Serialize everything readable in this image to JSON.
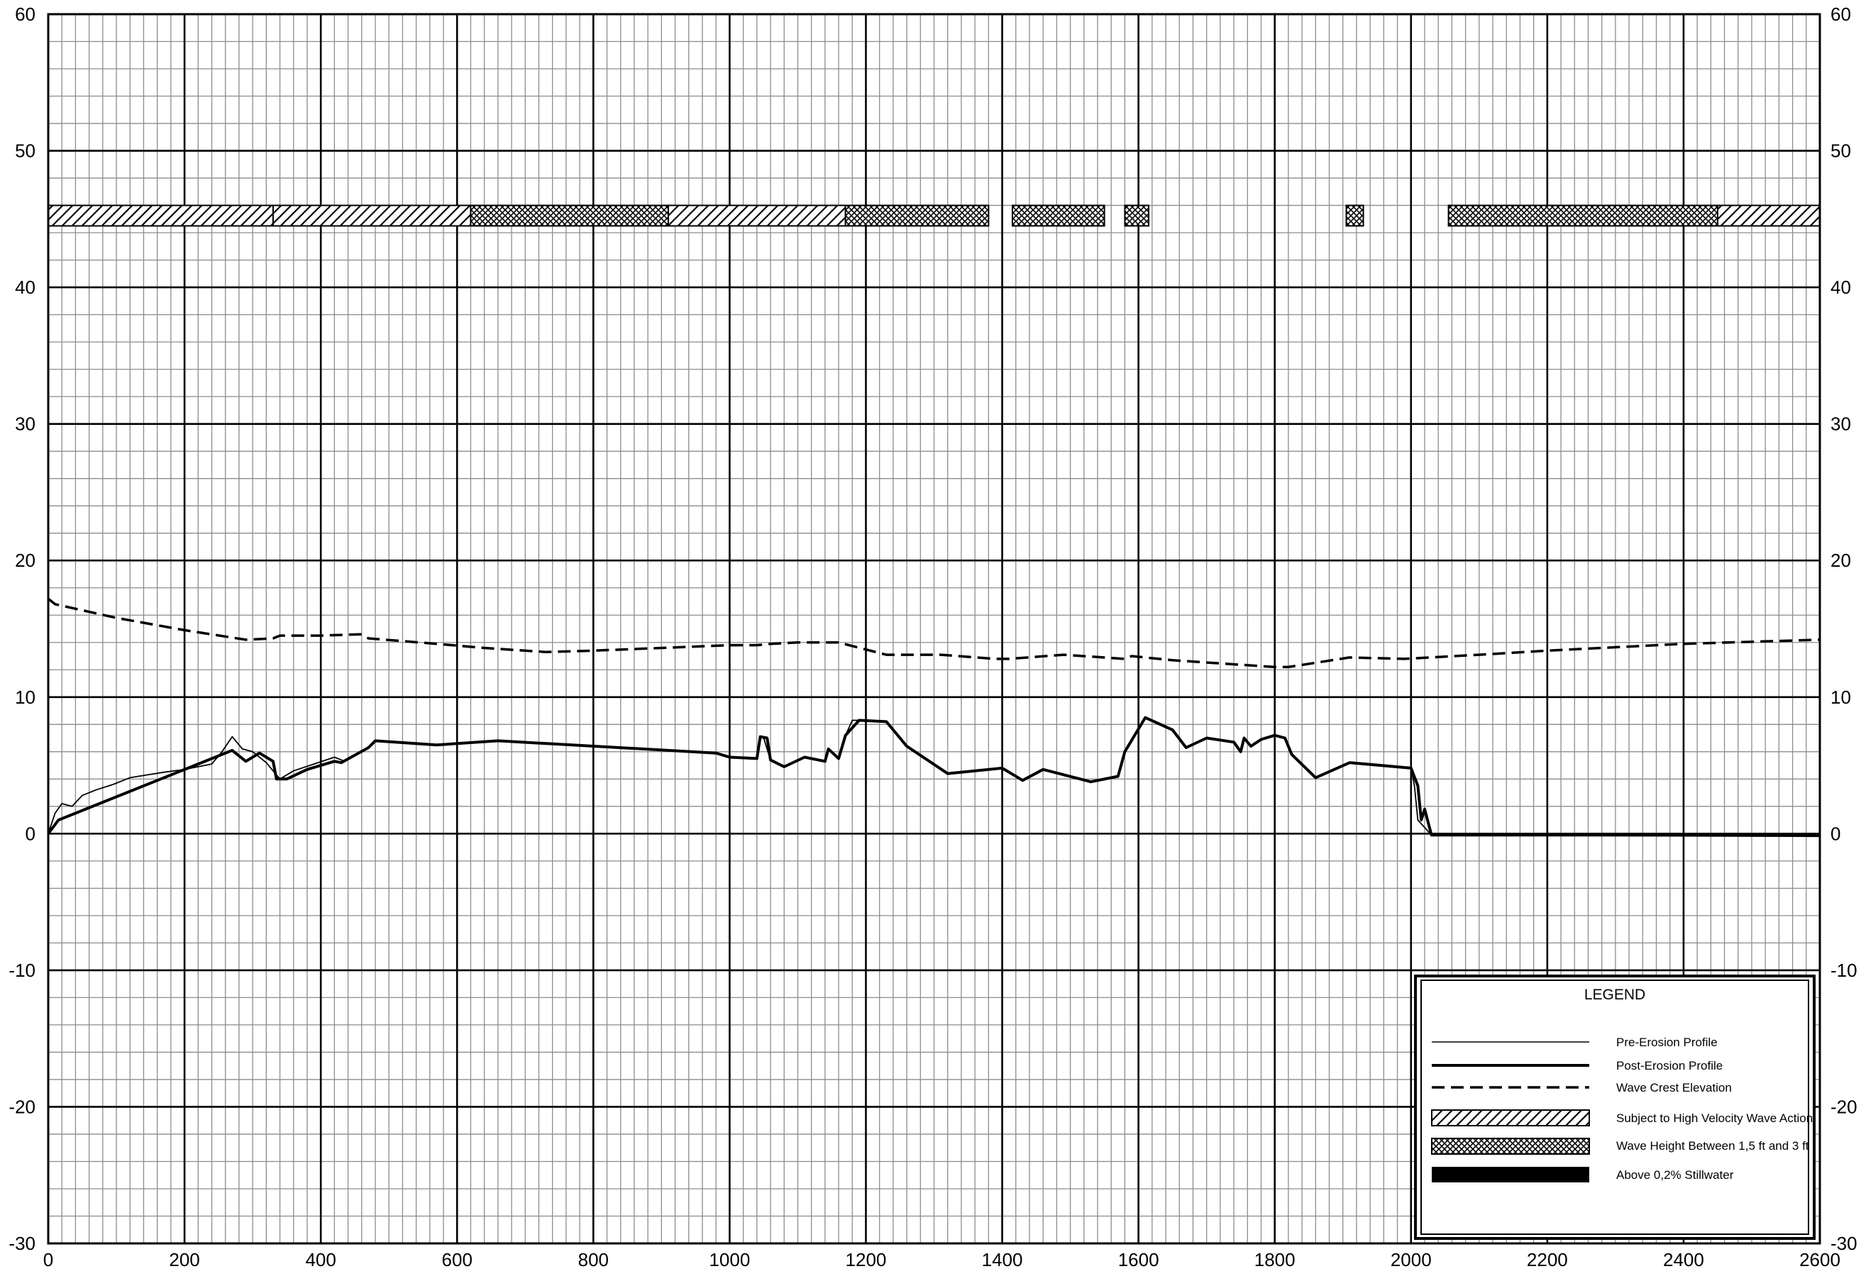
{
  "chart_data": {
    "type": "line",
    "title": "",
    "xlabel": "",
    "ylabel": "",
    "xlim": [
      0,
      2600
    ],
    "ylim": [
      -30,
      60
    ],
    "grid": true,
    "x_ticks": [
      "0",
      "200",
      "400",
      "600",
      "800",
      "1000",
      "1200",
      "1400",
      "1600",
      "1800",
      "2000",
      "2200",
      "2400",
      "2600"
    ],
    "y_ticks": [
      "60",
      "50",
      "40",
      "30",
      "20",
      "10",
      "0",
      "-10",
      "-20",
      "-30"
    ],
    "series": [
      {
        "name": "Pre-Erosion Profile",
        "style": "thin",
        "x": [
          0,
          10,
          20,
          35,
          50,
          70,
          95,
          120,
          145,
          170,
          200,
          240,
          255,
          270,
          285,
          300,
          320,
          340,
          360,
          390,
          420,
          435,
          470,
          480,
          560,
          660,
          980,
          1000,
          1040,
          1045,
          1050,
          1060,
          1080,
          1110,
          1140,
          1145,
          1160,
          1170,
          1180,
          1200,
          1230,
          1260,
          1320,
          1400,
          1430,
          1460,
          1530,
          1570,
          1580,
          1610,
          1650,
          1670,
          1700,
          1740,
          1750,
          1755,
          1765,
          1780,
          1800,
          1815,
          1825,
          1860,
          1910,
          2000,
          2005,
          2010,
          2030,
          2600
        ],
        "y": [
          0,
          1.5,
          2.2,
          2.0,
          2.8,
          3.2,
          3.6,
          4.1,
          4.3,
          4.5,
          4.7,
          5.1,
          6.0,
          7.1,
          6.2,
          6.0,
          5.2,
          4.0,
          4.6,
          5.1,
          5.6,
          5.3,
          6.3,
          6.8,
          6.5,
          6.8,
          5.9,
          5.6,
          5.5,
          7.1,
          7.0,
          5.4,
          4.9,
          5.6,
          5.3,
          6.2,
          5.5,
          7.2,
          8.3,
          8.3,
          8.2,
          6.4,
          4.4,
          4.8,
          3.9,
          4.7,
          3.8,
          4.2,
          6.0,
          8.5,
          7.6,
          6.3,
          7.0,
          6.7,
          6.0,
          7.0,
          6.4,
          6.9,
          7.2,
          7.0,
          5.8,
          4.1,
          5.2,
          4.8,
          3.5,
          1.0,
          -0.1,
          -0.2
        ]
      },
      {
        "name": "Post-Erosion Profile",
        "style": "thick",
        "x": [
          0,
          15,
          270,
          290,
          310,
          330,
          335,
          350,
          380,
          420,
          430,
          470,
          480,
          570,
          660,
          980,
          1000,
          1040,
          1045,
          1055,
          1060,
          1080,
          1110,
          1140,
          1145,
          1160,
          1170,
          1190,
          1230,
          1260,
          1320,
          1400,
          1430,
          1460,
          1530,
          1570,
          1580,
          1610,
          1650,
          1670,
          1700,
          1740,
          1750,
          1755,
          1765,
          1780,
          1800,
          1815,
          1825,
          1860,
          1910,
          2000,
          2010,
          2015,
          2020,
          2030,
          2600
        ],
        "y": [
          0,
          1.0,
          6.1,
          5.3,
          5.9,
          5.3,
          4.0,
          4.0,
          4.7,
          5.3,
          5.2,
          6.3,
          6.8,
          6.5,
          6.8,
          5.9,
          5.6,
          5.5,
          7.1,
          7.0,
          5.4,
          4.9,
          5.6,
          5.3,
          6.2,
          5.5,
          7.2,
          8.3,
          8.2,
          6.4,
          4.4,
          4.8,
          3.9,
          4.7,
          3.8,
          4.2,
          6.0,
          8.5,
          7.6,
          6.3,
          7.0,
          6.7,
          6.0,
          7.0,
          6.4,
          6.9,
          7.2,
          7.0,
          5.8,
          4.1,
          5.2,
          4.8,
          3.5,
          1.0,
          1.8,
          -0.1,
          -0.1
        ]
      },
      {
        "name": "Wave Crest Elevation",
        "style": "dashed",
        "x": [
          0,
          10,
          100,
          200,
          290,
          330,
          340,
          400,
          460,
          470,
          570,
          640,
          730,
          800,
          900,
          1000,
          1040,
          1060,
          1100,
          1160,
          1230,
          1310,
          1390,
          1410,
          1490,
          1580,
          1590,
          1650,
          1800,
          1820,
          1910,
          1990,
          2100,
          2200,
          2400,
          2600
        ],
        "y": [
          17.2,
          16.8,
          15.8,
          14.9,
          14.2,
          14.3,
          14.5,
          14.5,
          14.6,
          14.3,
          13.9,
          13.6,
          13.3,
          13.4,
          13.6,
          13.8,
          13.8,
          13.9,
          14.0,
          14.0,
          13.1,
          13.1,
          12.8,
          12.8,
          13.1,
          12.8,
          13.0,
          12.7,
          12.2,
          12.2,
          12.9,
          12.8,
          13.1,
          13.4,
          13.9,
          14.2
        ]
      }
    ],
    "zone_bands": {
      "y_from": 44.5,
      "y_to": 46.0,
      "segments": [
        {
          "x0": 0,
          "x1": 330,
          "zone": "high_velocity"
        },
        {
          "x0": 330,
          "x1": 620,
          "zone": "high_velocity"
        },
        {
          "x0": 620,
          "x1": 910,
          "zone": "wave_height_1_5_to_3"
        },
        {
          "x0": 910,
          "x1": 1170,
          "zone": "high_velocity"
        },
        {
          "x0": 1170,
          "x1": 1380,
          "zone": "wave_height_1_5_to_3"
        },
        {
          "x0": 1415,
          "x1": 1550,
          "zone": "wave_height_1_5_to_3"
        },
        {
          "x0": 1580,
          "x1": 1615,
          "zone": "wave_height_1_5_to_3"
        },
        {
          "x0": 1905,
          "x1": 1930,
          "zone": "wave_height_1_5_to_3"
        },
        {
          "x0": 2055,
          "x1": 2450,
          "zone": "wave_height_1_5_to_3"
        },
        {
          "x0": 2450,
          "x1": 2600,
          "zone": "high_velocity"
        }
      ]
    },
    "legend": {
      "title": "LEGEND",
      "placement": "bottom-right",
      "entries": [
        {
          "label": "Pre-Erosion Profile",
          "kind": "thin-line"
        },
        {
          "label": "Post-Erosion Profile",
          "kind": "thick-line"
        },
        {
          "label": "Wave Crest Elevation",
          "kind": "dashed-line"
        },
        {
          "label": "Subject to High Velocity Wave Action",
          "kind": "hatch"
        },
        {
          "label": "Wave Height Between 1,5 ft and 3 ft",
          "kind": "crosshatch"
        },
        {
          "label": "Above 0,2% Stillwater",
          "kind": "solid"
        }
      ]
    }
  },
  "colors": {
    "background": "#ffffff",
    "minor_grid": "#8c8c8c",
    "major_grid": "#000000",
    "ink": "#000000"
  }
}
